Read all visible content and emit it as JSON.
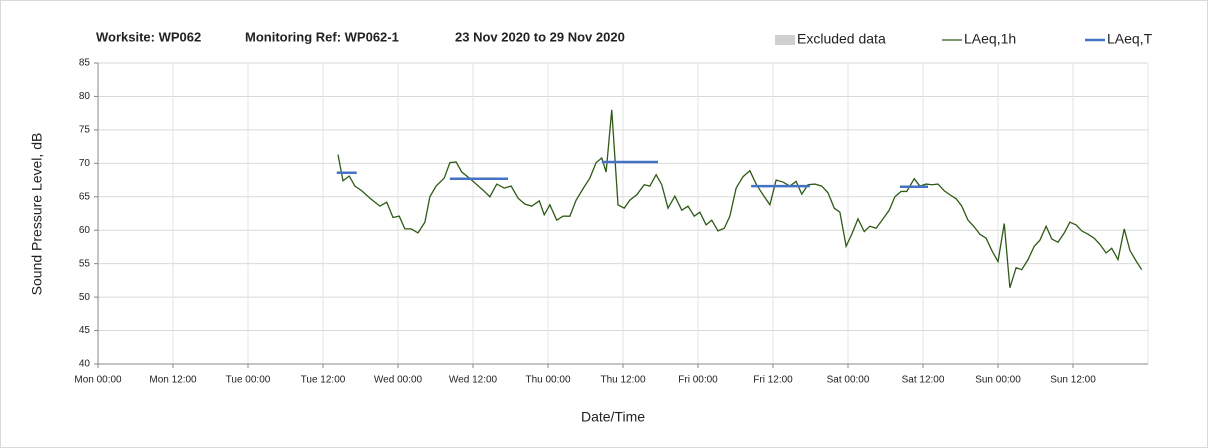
{
  "chart_data": {
    "type": "line",
    "title_parts": [
      "Worksite: WP062",
      "Monitoring Ref: WP062-1",
      "23 Nov 2020 to 29 Nov 2020"
    ],
    "x_label": "Date/Time",
    "y_label": "Sound Pressure Level, dB",
    "xlim": [
      0,
      168
    ],
    "xticks": [
      {
        "value": 0,
        "label": "Mon 00:00"
      },
      {
        "value": 12,
        "label": "Mon 12:00"
      },
      {
        "value": 24,
        "label": "Tue 00:00"
      },
      {
        "value": 36,
        "label": "Tue 12:00"
      },
      {
        "value": 48,
        "label": "Wed 00:00"
      },
      {
        "value": 60,
        "label": "Wed 12:00"
      },
      {
        "value": 72,
        "label": "Thu 00:00"
      },
      {
        "value": 84,
        "label": "Thu 12:00"
      },
      {
        "value": 96,
        "label": "Fri 00:00"
      },
      {
        "value": 108,
        "label": "Fri 12:00"
      },
      {
        "value": 120,
        "label": "Sat 00:00"
      },
      {
        "value": 132,
        "label": "Sat 12:00"
      },
      {
        "value": 144,
        "label": "Sun 00:00"
      },
      {
        "value": 156,
        "label": "Sun 12:00"
      }
    ],
    "ylim": [
      40,
      85
    ],
    "yticks": [
      40,
      45,
      50,
      55,
      60,
      65,
      70,
      75,
      80,
      85
    ],
    "grid": true,
    "legend": "top-right",
    "excluded_data": {
      "name": "Excluded data",
      "color": "#d0d0d0"
    },
    "series": [
      {
        "name": "LAeq,1h",
        "color": "#2f5a17",
        "x": [
          38.4,
          39.2,
          40.2,
          41.1,
          42.2,
          43.5,
          45.1,
          46.2,
          47.2,
          48.2,
          49.1,
          50.1,
          51.2,
          52.3,
          53.1,
          54.1,
          55.4,
          56.3,
          57.3,
          58.2,
          59.4,
          60.5,
          61.6,
          62.7,
          63.8,
          65.0,
          66.1,
          67.2,
          68.3,
          69.4,
          70.6,
          71.4,
          72.3,
          73.4,
          74.4,
          75.5,
          76.5,
          77.8,
          78.7,
          79.7,
          80.6,
          81.3,
          82.2,
          83.2,
          84.2,
          85.1,
          86.2,
          87.4,
          88.3,
          89.3,
          90.2,
          91.2,
          92.3,
          93.4,
          94.4,
          95.4,
          96.3,
          97.3,
          98.2,
          99.2,
          100.2,
          101.1,
          102.1,
          103.2,
          104.3,
          105.3,
          106.4,
          107.5,
          108.5,
          109.6,
          110.7,
          111.7,
          112.6,
          113.6,
          114.7,
          115.8,
          116.8,
          117.8,
          118.7,
          119.7,
          120.6,
          121.6,
          122.6,
          123.5,
          124.5,
          125.6,
          126.6,
          127.5,
          128.5,
          129.4,
          130.6,
          131.5,
          132.5,
          133.4,
          134.4,
          135.4,
          136.3,
          137.3,
          138.2,
          139.2,
          140.2,
          141.1,
          142.1,
          143.0,
          144.0,
          145.0,
          145.9,
          146.9,
          147.8,
          148.8,
          149.8,
          150.7,
          151.7,
          152.6,
          153.6,
          154.6,
          155.5,
          156.5,
          157.4,
          158.4,
          159.4,
          160.3,
          161.3,
          162.2,
          163.2,
          164.2,
          165.1,
          166.1,
          167.0
        ],
        "values": [
          71.3,
          67.4,
          68.1,
          66.6,
          65.9,
          64.8,
          63.6,
          64.2,
          61.9,
          62.1,
          60.2,
          60.2,
          59.6,
          61.2,
          65.0,
          66.6,
          67.8,
          70.1,
          70.2,
          68.7,
          67.8,
          66.9,
          66.0,
          65.0,
          66.9,
          66.3,
          66.6,
          64.8,
          63.9,
          63.6,
          64.4,
          62.3,
          63.8,
          61.5,
          62.1,
          62.1,
          64.5,
          66.5,
          67.8,
          70.1,
          70.8,
          68.7,
          78.0,
          63.8,
          63.3,
          64.5,
          65.3,
          66.8,
          66.6,
          68.3,
          66.8,
          63.3,
          65.1,
          63.0,
          63.6,
          62.1,
          62.7,
          60.8,
          61.5,
          59.9,
          60.3,
          62.1,
          66.3,
          68.0,
          68.9,
          66.9,
          65.3,
          63.8,
          67.5,
          67.2,
          66.6,
          67.3,
          65.4,
          66.8,
          66.9,
          66.6,
          65.6,
          63.3,
          62.7,
          57.6,
          59.4,
          61.7,
          59.8,
          60.6,
          60.3,
          61.7,
          63.0,
          65.0,
          65.8,
          65.8,
          67.7,
          66.6,
          66.9,
          66.8,
          66.9,
          65.9,
          65.3,
          64.7,
          63.6,
          61.5,
          60.5,
          59.4,
          58.8,
          57.0,
          55.3,
          61.0,
          51.4,
          54.4,
          54.1,
          55.6,
          57.6,
          58.5,
          60.6,
          58.7,
          58.2,
          59.6,
          61.2,
          60.8,
          59.9,
          59.4,
          58.8,
          57.9,
          56.6,
          57.3,
          55.6,
          60.2,
          57.0,
          55.4,
          54.1
        ]
      },
      {
        "name": "LAeq,T",
        "color": "#4472c4",
        "x_start": [
          38.2,
          56.3,
          80.6,
          104.5,
          128.3
        ],
        "x_end": [
          41.4,
          65.6,
          89.6,
          113.9,
          132.8
        ],
        "values": [
          68.6,
          67.7,
          70.2,
          66.6,
          66.5
        ]
      }
    ]
  }
}
